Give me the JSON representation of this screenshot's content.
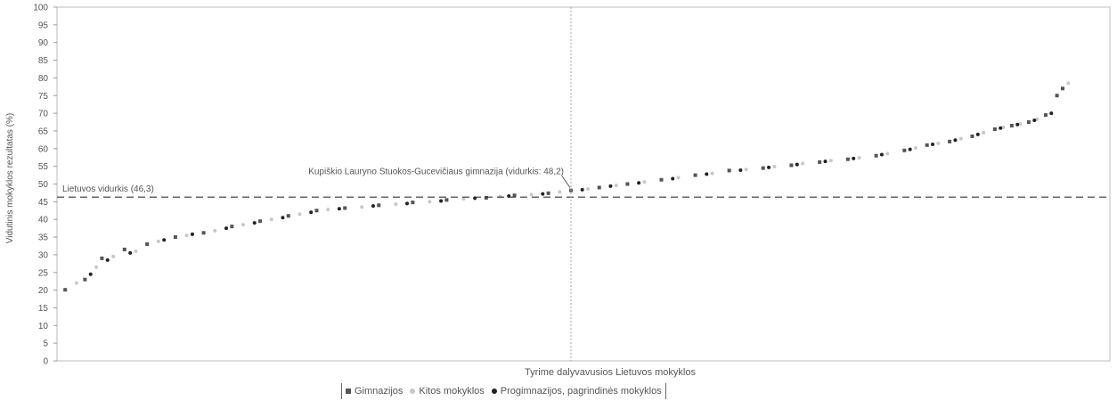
{
  "chart_data": {
    "type": "scatter",
    "title": "",
    "xlabel": "Tyrime dalyvavusios Lietuvos mokyklos",
    "ylabel": "Vidutinis mokyklos rezultatas (%)",
    "ylim": [
      0,
      100
    ],
    "yticks": [
      0,
      5,
      10,
      15,
      20,
      25,
      30,
      35,
      40,
      45,
      50,
      55,
      60,
      65,
      70,
      75,
      80,
      85,
      90,
      95,
      100
    ],
    "xlim": [
      0,
      360
    ],
    "grid": false,
    "reference_line": {
      "label": "Lietuvos vidurkis (46,3)",
      "value": 46.3
    },
    "highlight": {
      "label": "Kupiškio Lauryno Stuokos-Gucevičiaus gimnazija (vidurkis: 48,2)",
      "rank": 180,
      "value": 48.2
    },
    "series": [
      {
        "name": "Gimnazijos",
        "color": "#555555",
        "marker": "square",
        "points": [
          [
            1,
            20.1
          ],
          [
            8,
            23.0
          ],
          [
            14,
            29.0
          ],
          [
            22,
            31.5
          ],
          [
            30,
            33.0
          ],
          [
            40,
            35.0
          ],
          [
            50,
            36.2
          ],
          [
            60,
            38.0
          ],
          [
            70,
            39.5
          ],
          [
            80,
            41.0
          ],
          [
            90,
            42.5
          ],
          [
            100,
            43.2
          ],
          [
            112,
            44.0
          ],
          [
            124,
            44.8
          ],
          [
            136,
            45.5
          ],
          [
            150,
            46.1
          ],
          [
            160,
            46.8
          ],
          [
            172,
            47.4
          ],
          [
            180,
            48.2
          ],
          [
            190,
            49.0
          ],
          [
            200,
            50.0
          ],
          [
            212,
            51.2
          ],
          [
            224,
            52.5
          ],
          [
            236,
            53.8
          ],
          [
            248,
            54.5
          ],
          [
            258,
            55.3
          ],
          [
            268,
            56.2
          ],
          [
            278,
            57.0
          ],
          [
            288,
            58.0
          ],
          [
            298,
            59.5
          ],
          [
            306,
            61.0
          ],
          [
            314,
            62.0
          ],
          [
            322,
            63.5
          ],
          [
            330,
            65.5
          ],
          [
            336,
            66.5
          ],
          [
            342,
            67.5
          ],
          [
            348,
            69.5
          ],
          [
            352,
            75.0
          ],
          [
            354,
            77.0
          ]
        ]
      },
      {
        "name": "Kitos mokyklos",
        "color": "#c8c8c8",
        "marker": "circle",
        "points": [
          [
            5,
            22.0
          ],
          [
            12,
            26.5
          ],
          [
            18,
            29.5
          ],
          [
            26,
            31.0
          ],
          [
            34,
            33.8
          ],
          [
            44,
            35.5
          ],
          [
            54,
            36.8
          ],
          [
            64,
            38.5
          ],
          [
            74,
            40.0
          ],
          [
            84,
            41.5
          ],
          [
            94,
            42.8
          ],
          [
            106,
            43.5
          ],
          [
            118,
            44.3
          ],
          [
            130,
            45.0
          ],
          [
            142,
            45.8
          ],
          [
            155,
            46.4
          ],
          [
            166,
            47.0
          ],
          [
            176,
            47.8
          ],
          [
            186,
            48.6
          ],
          [
            196,
            49.6
          ],
          [
            206,
            50.6
          ],
          [
            218,
            51.8
          ],
          [
            230,
            53.0
          ],
          [
            242,
            54.1
          ],
          [
            252,
            54.9
          ],
          [
            262,
            55.8
          ],
          [
            272,
            56.6
          ],
          [
            282,
            57.4
          ],
          [
            292,
            58.6
          ],
          [
            302,
            60.2
          ],
          [
            310,
            61.5
          ],
          [
            318,
            62.8
          ],
          [
            326,
            64.5
          ],
          [
            333,
            66.0
          ],
          [
            339,
            67.0
          ],
          [
            345,
            68.3
          ],
          [
            356,
            78.5
          ]
        ]
      },
      {
        "name": "Progimnazijos, pagrindinės mokyklos",
        "color": "#222222",
        "marker": "circle",
        "points": [
          [
            10,
            24.5
          ],
          [
            16,
            28.5
          ],
          [
            24,
            30.5
          ],
          [
            36,
            34.2
          ],
          [
            46,
            35.8
          ],
          [
            58,
            37.5
          ],
          [
            68,
            39.0
          ],
          [
            78,
            40.5
          ],
          [
            88,
            42.0
          ],
          [
            98,
            43.0
          ],
          [
            110,
            43.8
          ],
          [
            122,
            44.5
          ],
          [
            134,
            45.2
          ],
          [
            146,
            46.0
          ],
          [
            158,
            46.6
          ],
          [
            170,
            47.2
          ],
          [
            184,
            48.4
          ],
          [
            194,
            49.4
          ],
          [
            204,
            50.3
          ],
          [
            216,
            51.5
          ],
          [
            228,
            52.8
          ],
          [
            240,
            53.9
          ],
          [
            250,
            54.7
          ],
          [
            260,
            55.5
          ],
          [
            270,
            56.4
          ],
          [
            280,
            57.2
          ],
          [
            290,
            58.3
          ],
          [
            300,
            59.8
          ],
          [
            308,
            61.2
          ],
          [
            316,
            62.4
          ],
          [
            324,
            64.0
          ],
          [
            332,
            65.8
          ],
          [
            338,
            66.8
          ],
          [
            344,
            68.0
          ],
          [
            350,
            70.0
          ]
        ]
      }
    ]
  }
}
